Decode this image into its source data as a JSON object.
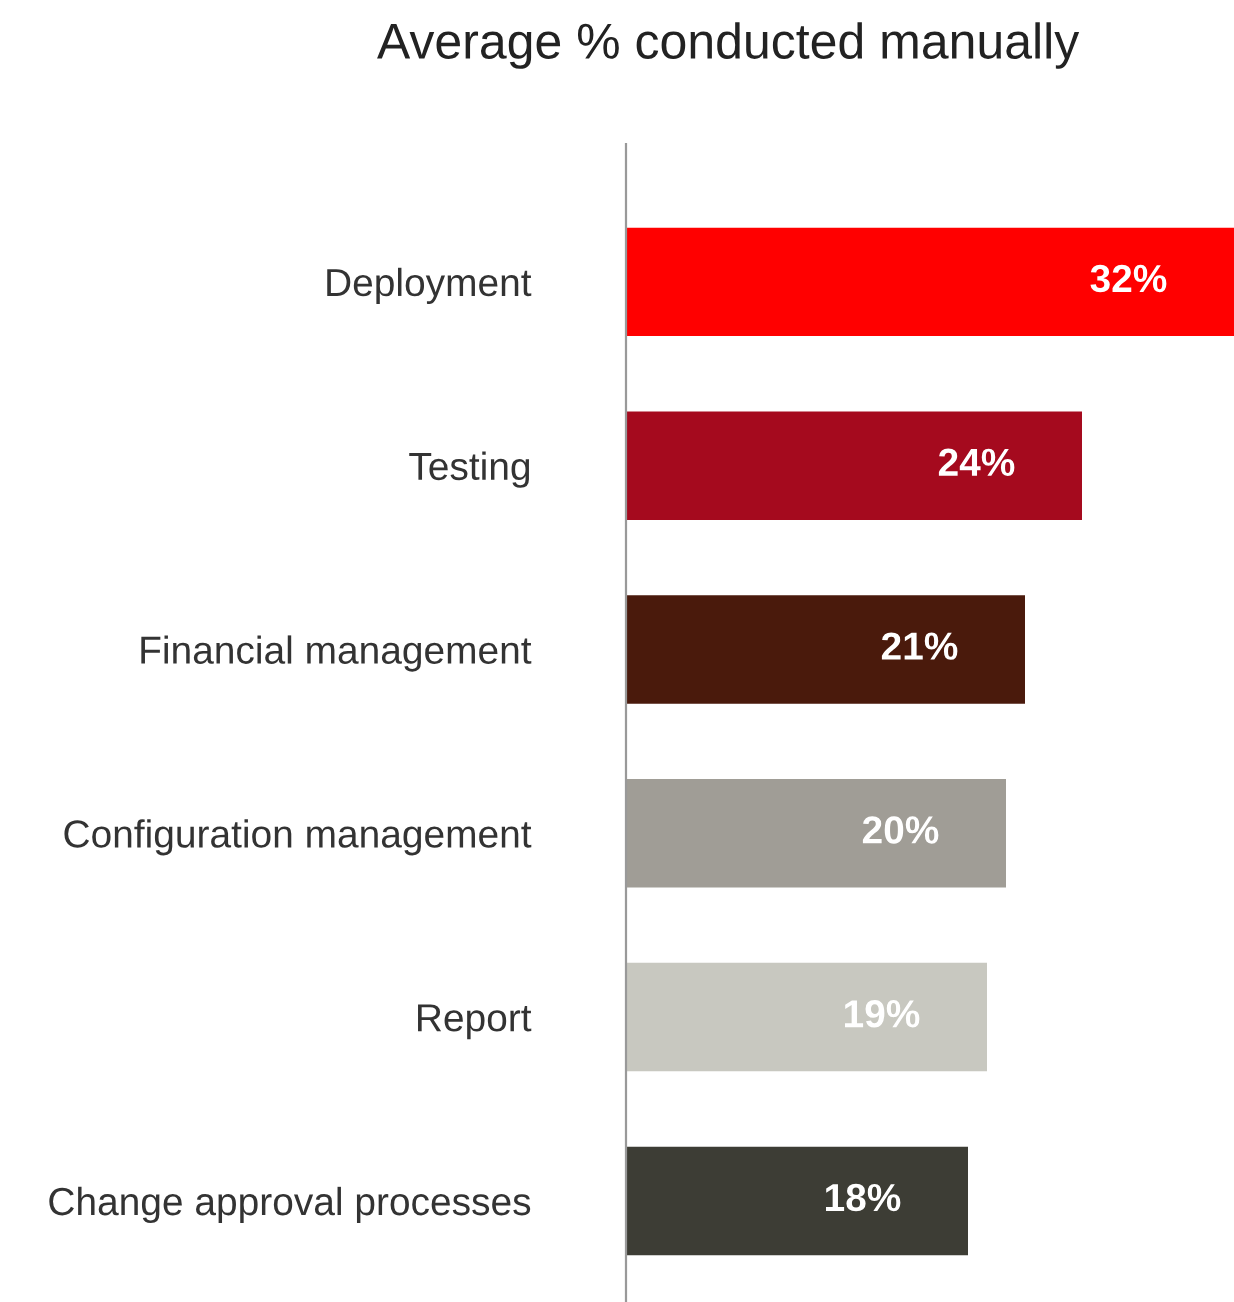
{
  "chart_data": {
    "type": "bar",
    "orientation": "horizontal",
    "title": "Average % conducted manually",
    "categories": [
      "Deployment",
      "Testing",
      "Financial management",
      "Configuration management",
      "Report",
      "Change approval processes"
    ],
    "values": [
      32,
      24,
      21,
      20,
      19,
      18
    ],
    "colors": [
      "#ff0000",
      "#a50a1e",
      "#4a1a0c",
      "#a09d96",
      "#c8c8c0",
      "#3d3d35"
    ],
    "value_labels": [
      "32%",
      "24%",
      "21%",
      "20%",
      "19%",
      "18%"
    ],
    "grid": false,
    "legend": false
  }
}
